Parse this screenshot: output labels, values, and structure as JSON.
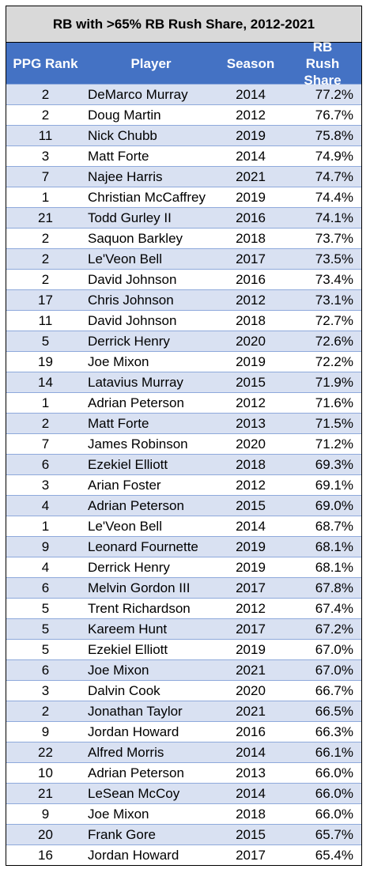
{
  "chart_data": {
    "type": "table",
    "title": "RB with >65% RB Rush Share, 2012-2021",
    "columns": [
      "PPG Rank",
      "Player",
      "Season",
      "RB Rush Share"
    ],
    "rows": [
      [
        "2",
        "DeMarco Murray",
        "2014",
        "77.2%"
      ],
      [
        "2",
        "Doug Martin",
        "2012",
        "76.7%"
      ],
      [
        "11",
        "Nick Chubb",
        "2019",
        "75.8%"
      ],
      [
        "3",
        "Matt Forte",
        "2014",
        "74.9%"
      ],
      [
        "7",
        "Najee Harris",
        "2021",
        "74.7%"
      ],
      [
        "1",
        "Christian McCaffrey",
        "2019",
        "74.4%"
      ],
      [
        "21",
        "Todd Gurley II",
        "2016",
        "74.1%"
      ],
      [
        "2",
        "Saquon Barkley",
        "2018",
        "73.7%"
      ],
      [
        "2",
        "Le'Veon Bell",
        "2017",
        "73.5%"
      ],
      [
        "2",
        "David Johnson",
        "2016",
        "73.4%"
      ],
      [
        "17",
        "Chris Johnson",
        "2012",
        "73.1%"
      ],
      [
        "11",
        "David Johnson",
        "2018",
        "72.7%"
      ],
      [
        "5",
        "Derrick Henry",
        "2020",
        "72.6%"
      ],
      [
        "19",
        "Joe Mixon",
        "2019",
        "72.2%"
      ],
      [
        "14",
        "Latavius Murray",
        "2015",
        "71.9%"
      ],
      [
        "1",
        "Adrian Peterson",
        "2012",
        "71.6%"
      ],
      [
        "2",
        "Matt Forte",
        "2013",
        "71.5%"
      ],
      [
        "7",
        "James Robinson",
        "2020",
        "71.2%"
      ],
      [
        "6",
        "Ezekiel Elliott",
        "2018",
        "69.3%"
      ],
      [
        "3",
        "Arian Foster",
        "2012",
        "69.1%"
      ],
      [
        "4",
        "Adrian Peterson",
        "2015",
        "69.0%"
      ],
      [
        "1",
        "Le'Veon Bell",
        "2014",
        "68.7%"
      ],
      [
        "9",
        "Leonard Fournette",
        "2019",
        "68.1%"
      ],
      [
        "4",
        "Derrick Henry",
        "2019",
        "68.1%"
      ],
      [
        "6",
        "Melvin Gordon III",
        "2017",
        "67.8%"
      ],
      [
        "5",
        "Trent Richardson",
        "2012",
        "67.4%"
      ],
      [
        "5",
        "Kareem Hunt",
        "2017",
        "67.2%"
      ],
      [
        "5",
        "Ezekiel Elliott",
        "2019",
        "67.0%"
      ],
      [
        "6",
        "Joe Mixon",
        "2021",
        "67.0%"
      ],
      [
        "3",
        "Dalvin Cook",
        "2020",
        "66.7%"
      ],
      [
        "2",
        "Jonathan Taylor",
        "2021",
        "66.5%"
      ],
      [
        "9",
        "Jordan Howard",
        "2016",
        "66.3%"
      ],
      [
        "22",
        "Alfred Morris",
        "2014",
        "66.1%"
      ],
      [
        "10",
        "Adrian Peterson",
        "2013",
        "66.0%"
      ],
      [
        "21",
        "LeSean McCoy",
        "2014",
        "66.0%"
      ],
      [
        "9",
        "Joe Mixon",
        "2018",
        "66.0%"
      ],
      [
        "20",
        "Frank Gore",
        "2015",
        "65.7%"
      ],
      [
        "16",
        "Jordan Howard",
        "2017",
        "65.4%"
      ]
    ]
  },
  "colors": {
    "title_bg": "#d9d9d9",
    "header_bg": "#4472c4",
    "band_bg": "#d9e1f2"
  }
}
